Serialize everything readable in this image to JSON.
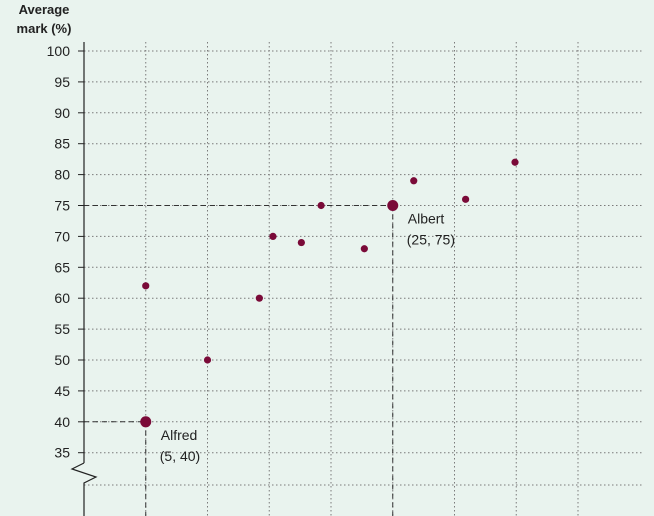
{
  "colors": {
    "background": "#e9f3ee",
    "point": "#7a0a38",
    "grid": "#7a7a7a",
    "axis": "#222222",
    "text": "#222222"
  },
  "chart_data": {
    "type": "scatter",
    "ylabel": [
      "Average",
      "mark (%)"
    ],
    "xlabel": "",
    "ylim": [
      35,
      100
    ],
    "y_ticks": [
      "100",
      "95",
      "90",
      "85",
      "80",
      "75",
      "70",
      "65",
      "60",
      "55",
      "50",
      "45",
      "40",
      "35"
    ],
    "y_axis_break": true,
    "grid": true,
    "x_gridlines": [
      5,
      10,
      15,
      20,
      25,
      30,
      35,
      40
    ],
    "series": [
      {
        "points": [
          {
            "x": 5,
            "y": 62
          },
          {
            "x": 10,
            "y": 50
          },
          {
            "x": 14.2,
            "y": 60
          },
          {
            "x": 15.3,
            "y": 70
          },
          {
            "x": 17.6,
            "y": 69
          },
          {
            "x": 19.2,
            "y": 75
          },
          {
            "x": 22.7,
            "y": 68
          },
          {
            "x": 26.7,
            "y": 79
          },
          {
            "x": 30.9,
            "y": 76
          },
          {
            "x": 34.9,
            "y": 82
          }
        ]
      }
    ],
    "highlighted": [
      {
        "name": "Alfred",
        "coords": "(5, 40)",
        "x": 5,
        "y": 40
      },
      {
        "name": "Albert",
        "coords": "(25, 75)",
        "x": 25,
        "y": 75
      }
    ]
  }
}
